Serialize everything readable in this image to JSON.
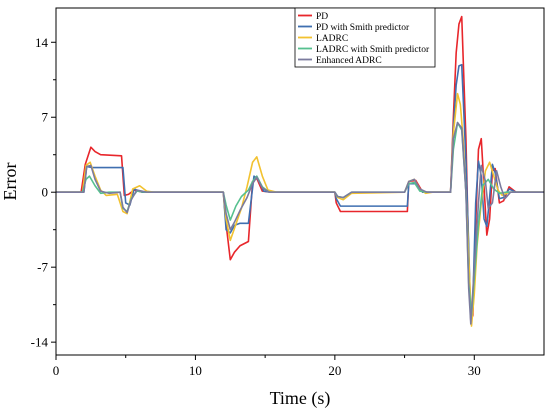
{
  "chart_data": {
    "type": "line",
    "xlabel": "Time (s)",
    "ylabel": "Error",
    "xlim": [
      0,
      35
    ],
    "ylim": [
      -15.2,
      17.2
    ],
    "xticks": [
      0,
      10,
      20,
      30
    ],
    "yticks": [
      -14,
      -7,
      0,
      7,
      14
    ],
    "xtick_labels": [
      "0",
      "10",
      "20",
      "30"
    ],
    "ytick_labels": [
      "-14",
      "-7",
      "0",
      "7",
      "14"
    ],
    "grid": false,
    "legend_position": "top-center",
    "series": [
      {
        "name": "PD",
        "color": "#e8262b",
        "points": [
          [
            0,
            0
          ],
          [
            1.8,
            0
          ],
          [
            2.1,
            2.6
          ],
          [
            2.5,
            4.2
          ],
          [
            2.8,
            3.8
          ],
          [
            3.2,
            3.5
          ],
          [
            4.7,
            3.4
          ],
          [
            4.9,
            -0.3
          ],
          [
            5.2,
            -0.2
          ],
          [
            5.6,
            0.2
          ],
          [
            6.2,
            0
          ],
          [
            12,
            0
          ],
          [
            12.2,
            -3.0
          ],
          [
            12.5,
            -6.3
          ],
          [
            12.8,
            -5.6
          ],
          [
            13.2,
            -5.0
          ],
          [
            13.8,
            -4.6
          ],
          [
            14.1,
            1.0
          ],
          [
            14.4,
            1.3
          ],
          [
            14.8,
            0.1
          ],
          [
            15.4,
            0
          ],
          [
            20,
            0
          ],
          [
            20.1,
            -1.0
          ],
          [
            20.4,
            -1.8
          ],
          [
            25.2,
            -1.8
          ],
          [
            25.3,
            1.0
          ],
          [
            25.8,
            1.1
          ],
          [
            26.3,
            0
          ],
          [
            28.3,
            0
          ],
          [
            28.5,
            7.0
          ],
          [
            28.7,
            13.0
          ],
          [
            28.9,
            15.7
          ],
          [
            29.1,
            16.4
          ],
          [
            29.4,
            5.0
          ],
          [
            29.6,
            -6.0
          ],
          [
            29.75,
            -12.0
          ],
          [
            29.9,
            -11.5
          ],
          [
            30.1,
            -3.0
          ],
          [
            30.3,
            4.0
          ],
          [
            30.5,
            5.0
          ],
          [
            30.7,
            0.5
          ],
          [
            30.9,
            -4.0
          ],
          [
            31.1,
            -2.5
          ],
          [
            31.3,
            2.0
          ],
          [
            31.5,
            2.2
          ],
          [
            31.8,
            -1.0
          ],
          [
            32.1,
            -0.8
          ],
          [
            32.5,
            0.5
          ],
          [
            33,
            0
          ],
          [
            35,
            0
          ]
        ]
      },
      {
        "name": "PD with Smith predictor",
        "color": "#3f6fb0",
        "points": [
          [
            0,
            0
          ],
          [
            2.0,
            0
          ],
          [
            2.2,
            2.4
          ],
          [
            2.6,
            2.3
          ],
          [
            4.8,
            2.3
          ],
          [
            5.0,
            -1.0
          ],
          [
            5.3,
            -1.2
          ],
          [
            5.6,
            0.3
          ],
          [
            6.2,
            0
          ],
          [
            12,
            0
          ],
          [
            12.2,
            -3.5
          ],
          [
            12.5,
            -3.8
          ],
          [
            12.8,
            -3.1
          ],
          [
            13.2,
            -2.9
          ],
          [
            13.8,
            -2.9
          ],
          [
            14.2,
            1.5
          ],
          [
            14.5,
            1.2
          ],
          [
            14.9,
            0.1
          ],
          [
            15.4,
            0
          ],
          [
            20,
            0
          ],
          [
            20.1,
            -0.6
          ],
          [
            20.4,
            -1.3
          ],
          [
            25.2,
            -1.3
          ],
          [
            25.3,
            0.8
          ],
          [
            25.8,
            0.8
          ],
          [
            26.3,
            0
          ],
          [
            28.3,
            0
          ],
          [
            28.5,
            6.0
          ],
          [
            28.7,
            10.0
          ],
          [
            28.9,
            11.8
          ],
          [
            29.1,
            11.9
          ],
          [
            29.4,
            3.0
          ],
          [
            29.6,
            -5.0
          ],
          [
            29.75,
            -12.0
          ],
          [
            29.9,
            -10.0
          ],
          [
            30.1,
            -1.0
          ],
          [
            30.3,
            2.9
          ],
          [
            30.5,
            1.5
          ],
          [
            30.7,
            -2.5
          ],
          [
            30.9,
            -3.2
          ],
          [
            31.1,
            -0.5
          ],
          [
            31.3,
            2.6
          ],
          [
            31.5,
            1.8
          ],
          [
            31.8,
            -0.6
          ],
          [
            32.1,
            -0.5
          ],
          [
            32.5,
            0.3
          ],
          [
            33,
            0
          ],
          [
            35,
            0
          ]
        ]
      },
      {
        "name": "LADRC",
        "color": "#f2c230",
        "points": [
          [
            0,
            0
          ],
          [
            1.9,
            0
          ],
          [
            2.15,
            2.5
          ],
          [
            2.45,
            2.8
          ],
          [
            2.8,
            1.5
          ],
          [
            3.2,
            0.2
          ],
          [
            3.6,
            -0.3
          ],
          [
            4.4,
            -0.2
          ],
          [
            4.8,
            -1.8
          ],
          [
            5.1,
            -2.0
          ],
          [
            5.5,
            0.3
          ],
          [
            6.0,
            0.6
          ],
          [
            6.5,
            0.1
          ],
          [
            7.0,
            0
          ],
          [
            12,
            0
          ],
          [
            12.2,
            -2.5
          ],
          [
            12.5,
            -4.5
          ],
          [
            12.9,
            -3.0
          ],
          [
            13.3,
            -1.5
          ],
          [
            13.7,
            0.5
          ],
          [
            14.1,
            2.8
          ],
          [
            14.4,
            3.3
          ],
          [
            14.8,
            1.5
          ],
          [
            15.2,
            0.2
          ],
          [
            15.8,
            0
          ],
          [
            20,
            0
          ],
          [
            20.2,
            -0.5
          ],
          [
            20.6,
            -0.7
          ],
          [
            21.2,
            -0.1
          ],
          [
            25,
            0
          ],
          [
            25.3,
            1.0
          ],
          [
            25.7,
            1.2
          ],
          [
            26.1,
            0.3
          ],
          [
            26.5,
            -0.1
          ],
          [
            27,
            0
          ],
          [
            28.3,
            0
          ],
          [
            28.5,
            5.5
          ],
          [
            28.8,
            9.2
          ],
          [
            29.0,
            8.2
          ],
          [
            29.2,
            5.0
          ],
          [
            29.4,
            0.0
          ],
          [
            29.6,
            -6.0
          ],
          [
            29.8,
            -12.5
          ],
          [
            30.0,
            -9.5
          ],
          [
            30.2,
            -5.0
          ],
          [
            30.5,
            -1.0
          ],
          [
            30.8,
            2.0
          ],
          [
            31.1,
            2.8
          ],
          [
            31.4,
            1.5
          ],
          [
            31.7,
            0.2
          ],
          [
            32.0,
            -0.3
          ],
          [
            32.5,
            0
          ],
          [
            35,
            0
          ]
        ]
      },
      {
        "name": "LADRC with Smith predictor",
        "color": "#56c08f",
        "points": [
          [
            0,
            0
          ],
          [
            1.9,
            0
          ],
          [
            2.15,
            1.2
          ],
          [
            2.4,
            1.5
          ],
          [
            2.8,
            0.6
          ],
          [
            3.2,
            -0.1
          ],
          [
            3.8,
            0
          ],
          [
            4.6,
            0
          ],
          [
            4.8,
            -1.5
          ],
          [
            5.1,
            -1.8
          ],
          [
            5.4,
            -0.6
          ],
          [
            5.8,
            0.1
          ],
          [
            6.4,
            0
          ],
          [
            12,
            0
          ],
          [
            12.2,
            -1.2
          ],
          [
            12.5,
            -2.6
          ],
          [
            12.9,
            -1.3
          ],
          [
            13.3,
            -0.4
          ],
          [
            13.8,
            0.2
          ],
          [
            14.1,
            1.0
          ],
          [
            14.4,
            1.5
          ],
          [
            14.8,
            0.5
          ],
          [
            15.3,
            0
          ],
          [
            20,
            0
          ],
          [
            20.2,
            -0.4
          ],
          [
            20.6,
            -0.5
          ],
          [
            21.2,
            0
          ],
          [
            25,
            0
          ],
          [
            25.3,
            0.8
          ],
          [
            25.7,
            0.9
          ],
          [
            26.1,
            0.1
          ],
          [
            26.6,
            0
          ],
          [
            28.3,
            0
          ],
          [
            28.5,
            4.0
          ],
          [
            28.8,
            6.5
          ],
          [
            29.1,
            5.8
          ],
          [
            29.4,
            0
          ],
          [
            29.6,
            -8.5
          ],
          [
            29.8,
            -11.5
          ],
          [
            30.0,
            -8.0
          ],
          [
            30.3,
            -3.0
          ],
          [
            30.6,
            0.6
          ],
          [
            31.0,
            1.2
          ],
          [
            31.4,
            0.3
          ],
          [
            31.8,
            -0.1
          ],
          [
            32.3,
            0
          ],
          [
            35,
            0
          ]
        ]
      },
      {
        "name": "Enhanced ADRC",
        "color": "#7b7b9e",
        "points": [
          [
            0,
            0
          ],
          [
            2.0,
            0
          ],
          [
            2.2,
            2.4
          ],
          [
            2.5,
            2.5
          ],
          [
            2.8,
            1.2
          ],
          [
            3.2,
            0.1
          ],
          [
            3.8,
            -0.1
          ],
          [
            4.6,
            0
          ],
          [
            4.8,
            -1.4
          ],
          [
            5.1,
            -1.9
          ],
          [
            5.4,
            -0.7
          ],
          [
            5.8,
            0.2
          ],
          [
            6.5,
            0
          ],
          [
            12,
            0
          ],
          [
            12.2,
            -2.0
          ],
          [
            12.5,
            -3.5
          ],
          [
            12.8,
            -2.8
          ],
          [
            13.2,
            -1.7
          ],
          [
            13.7,
            -0.5
          ],
          [
            14.1,
            0.8
          ],
          [
            14.4,
            1.4
          ],
          [
            14.8,
            0.4
          ],
          [
            15.3,
            0
          ],
          [
            20,
            0
          ],
          [
            20.2,
            -0.4
          ],
          [
            20.6,
            -0.5
          ],
          [
            21.2,
            0
          ],
          [
            25,
            0
          ],
          [
            25.3,
            1.0
          ],
          [
            25.7,
            1.2
          ],
          [
            26.1,
            0.3
          ],
          [
            26.6,
            0
          ],
          [
            28.3,
            0
          ],
          [
            28.5,
            5.0
          ],
          [
            28.8,
            6.5
          ],
          [
            29.1,
            6.0
          ],
          [
            29.4,
            0
          ],
          [
            29.6,
            -9.0
          ],
          [
            29.75,
            -12.3
          ],
          [
            30.0,
            -7.0
          ],
          [
            30.3,
            -1.0
          ],
          [
            30.5,
            2.5
          ],
          [
            30.8,
            1.0
          ],
          [
            31.0,
            -1.5
          ],
          [
            31.3,
            -1.0
          ],
          [
            31.6,
            2.0
          ],
          [
            31.9,
            0.5
          ],
          [
            32.2,
            -0.6
          ],
          [
            32.6,
            0
          ],
          [
            35,
            0
          ]
        ]
      }
    ]
  }
}
